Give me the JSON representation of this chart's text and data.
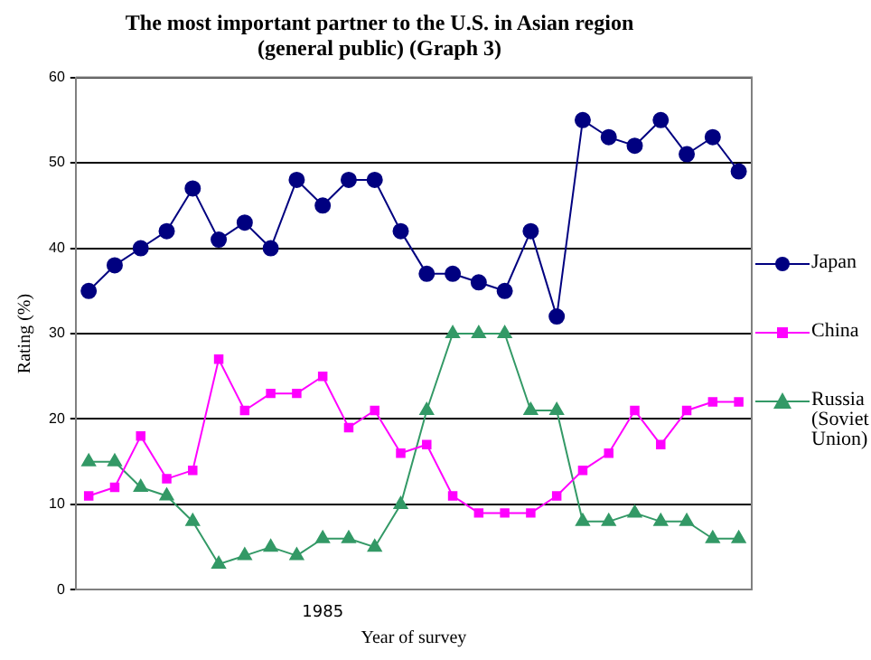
{
  "chart_data": {
    "type": "line",
    "title": "The most important partner to the U.S. in Asian region\n(general public) (Graph 3)",
    "xlabel": "Year of survey",
    "ylabel": "Rating (%)",
    "categories": [
      null,
      null,
      null,
      null,
      null,
      null,
      null,
      null,
      null,
      "1985",
      null,
      null,
      null,
      null,
      null,
      null,
      null,
      null,
      null,
      null,
      null,
      null,
      null,
      null,
      null,
      null
    ],
    "ylim": [
      0,
      60
    ],
    "yticks": [
      0,
      10,
      20,
      30,
      40,
      50,
      60
    ],
    "grid": "y",
    "legend": "right",
    "series": [
      {
        "name": "Japan",
        "color": "#000080",
        "marker": "circle",
        "values": [
          35,
          38,
          40,
          42,
          47,
          41,
          43,
          40,
          48,
          45,
          48,
          48,
          42,
          37,
          37,
          36,
          35,
          42,
          32,
          55,
          53,
          52,
          55,
          51,
          53,
          49
        ]
      },
      {
        "name": "China",
        "color": "#ff00ff",
        "marker": "square",
        "values": [
          11,
          12,
          18,
          13,
          14,
          27,
          21,
          23,
          23,
          25,
          19,
          21,
          16,
          17,
          11,
          9,
          9,
          9,
          11,
          14,
          16,
          21,
          17,
          21,
          22,
          22
        ]
      },
      {
        "name": "Russia (Soviet Union)",
        "color": "#339966",
        "marker": "triangle",
        "values": [
          15,
          15,
          12,
          11,
          8,
          3,
          4,
          5,
          4,
          6,
          6,
          5,
          10,
          21,
          30,
          30,
          30,
          21,
          21,
          8,
          8,
          9,
          8,
          8,
          6,
          6
        ]
      }
    ]
  }
}
